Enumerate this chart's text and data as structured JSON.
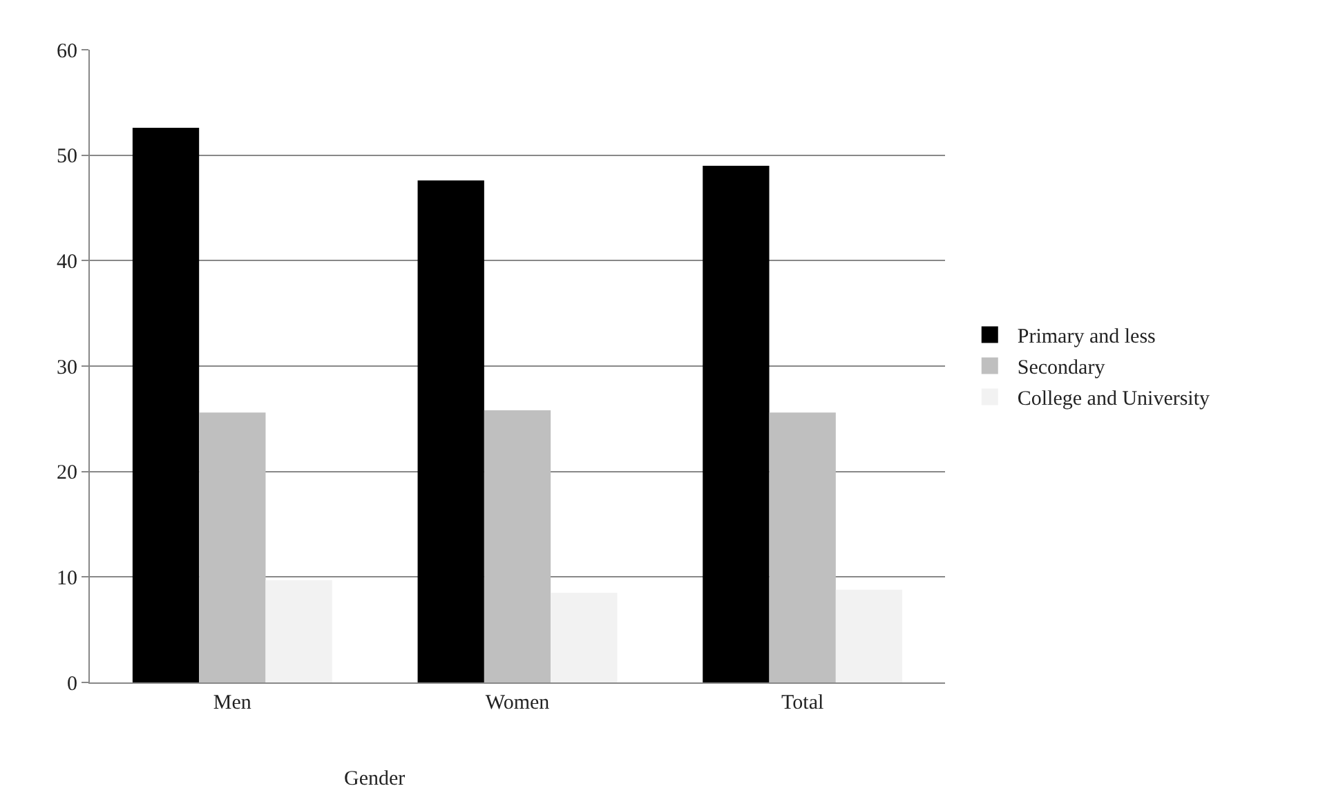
{
  "chart_data": {
    "type": "bar",
    "categories": [
      "Men",
      "Women",
      "Total"
    ],
    "series": [
      {
        "name": "Primary and less",
        "color": "#000000",
        "values": [
          52.6,
          47.6,
          49.0
        ]
      },
      {
        "name": "Secondary",
        "color": "#bfbfbf",
        "values": [
          25.6,
          25.8,
          25.6
        ]
      },
      {
        "name": "College and University",
        "color": "#f2f2f2",
        "values": [
          9.7,
          8.5,
          8.8
        ]
      }
    ],
    "annotations": [
      "Gender"
    ],
    "ylim": [
      0,
      60
    ],
    "yticks": [
      0,
      10,
      20,
      30,
      40,
      50,
      60
    ],
    "grid": "y",
    "legend": "right"
  }
}
